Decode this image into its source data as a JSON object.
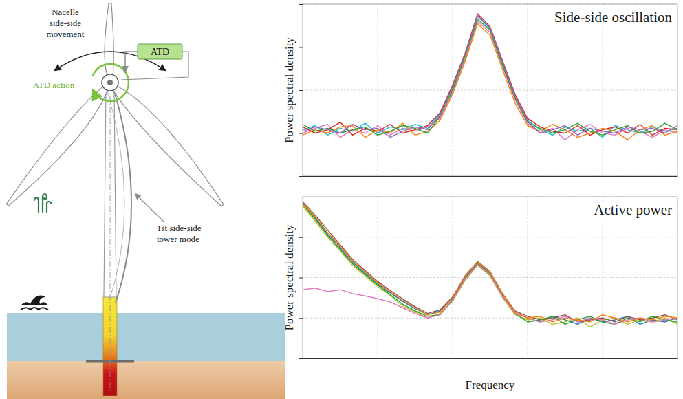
{
  "diagram": {
    "nacelle_label": [
      "Nacelle",
      "side-side",
      "movement"
    ],
    "atd": "ATD",
    "atd_action": "ATD action",
    "tower_mode_label": [
      "1st side-side",
      "tower mode"
    ]
  },
  "chart_data": [
    {
      "type": "line",
      "title": "Side-side oscillation",
      "y_label": "Power spectral density",
      "x": [
        0,
        1,
        2,
        3,
        4,
        5,
        6,
        7,
        8,
        9,
        10,
        11,
        12,
        13,
        14,
        15,
        16,
        17,
        18,
        19,
        20,
        21,
        22,
        23,
        24,
        25,
        26,
        27,
        28,
        29,
        30
      ],
      "xlim": [
        0,
        30
      ],
      "xticks": [
        6,
        12,
        18,
        24
      ],
      "ylim": [
        0.01,
        100
      ],
      "yticks": [
        0.01,
        0.1,
        1,
        10,
        100
      ],
      "log": "y",
      "grid": true,
      "tick_labels": false,
      "series": [
        {
          "color": "#17becf",
          "values": [
            0.12,
            0.15,
            0.09,
            0.13,
            0.11,
            0.17,
            0.1,
            0.14,
            0.12,
            0.16,
            0.13,
            0.28,
            1.1,
            6.5,
            52,
            27,
            4.2,
            0.7,
            0.2,
            0.12,
            0.09,
            0.14,
            0.11,
            0.13,
            0.08,
            0.15,
            0.12,
            0.1,
            0.14,
            0.11,
            0.13
          ]
        },
        {
          "color": "#e377c2",
          "values": [
            0.1,
            0.13,
            0.16,
            0.08,
            0.12,
            0.1,
            0.15,
            0.09,
            0.13,
            0.11,
            0.14,
            0.22,
            0.9,
            5.2,
            40,
            22,
            3.5,
            0.6,
            0.17,
            0.1,
            0.13,
            0.07,
            0.12,
            0.16,
            0.1,
            0.09,
            0.13,
            0.11,
            0.08,
            0.12,
            0.1
          ]
        },
        {
          "color": "#d62728",
          "values": [
            0.14,
            0.1,
            0.12,
            0.18,
            0.09,
            0.13,
            0.11,
            0.16,
            0.1,
            0.12,
            0.15,
            0.3,
            1.3,
            7.2,
            60,
            30,
            4.8,
            0.8,
            0.22,
            0.14,
            0.11,
            0.1,
            0.15,
            0.09,
            0.12,
            0.14,
            0.1,
            0.16,
            0.09,
            0.13,
            0.12
          ]
        },
        {
          "color": "#ff7f0e",
          "values": [
            0.09,
            0.12,
            0.1,
            0.14,
            0.15,
            0.08,
            0.12,
            0.1,
            0.17,
            0.09,
            0.11,
            0.2,
            0.8,
            4.6,
            35,
            19,
            3,
            0.5,
            0.15,
            0.11,
            0.16,
            0.12,
            0.08,
            0.1,
            0.13,
            0.11,
            0.07,
            0.12,
            0.15,
            0.09,
            0.11
          ]
        },
        {
          "color": "#2ca02c",
          "values": [
            0.16,
            0.11,
            0.13,
            0.1,
            0.12,
            0.14,
            0.09,
            0.11,
            0.15,
            0.13,
            0.1,
            0.25,
            1,
            6,
            45,
            25,
            3.8,
            0.65,
            0.18,
            0.13,
            0.1,
            0.12,
            0.17,
            0.11,
            0.09,
            0.12,
            0.15,
            0.1,
            0.11,
            0.17,
            0.12
          ]
        },
        {
          "color": "#9467bd",
          "values": [
            0.11,
            0.14,
            0.12,
            0.1,
            0.16,
            0.12,
            0.13,
            0.08,
            0.11,
            0.14,
            0.12,
            0.26,
            1.2,
            6.8,
            55,
            28,
            4.5,
            0.72,
            0.19,
            0.1,
            0.12,
            0.15,
            0.09,
            0.13,
            0.11,
            0.1,
            0.14,
            0.12,
            0.13,
            0.1,
            0.15
          ]
        }
      ]
    },
    {
      "type": "line",
      "title": "Active power",
      "y_label": "Power spectral density",
      "x_label": "Frequency",
      "x": [
        0,
        1,
        2,
        3,
        4,
        5,
        6,
        7,
        8,
        9,
        10,
        11,
        12,
        13,
        14,
        15,
        16,
        17,
        18,
        19,
        20,
        21,
        22,
        23,
        24,
        25,
        26,
        27,
        28,
        29,
        30
      ],
      "xlim": [
        0,
        30
      ],
      "xticks": [
        6,
        12,
        18,
        24
      ],
      "ylim": [
        0.01,
        100
      ],
      "yticks": [
        0.01,
        0.1,
        1,
        10,
        100
      ],
      "log": "y",
      "grid": true,
      "tick_labels": false,
      "series": [
        {
          "color": "#1f77b4",
          "values": [
            70,
            30,
            12,
            5.5,
            2.4,
            1.3,
            0.7,
            0.42,
            0.26,
            0.17,
            0.12,
            0.15,
            0.3,
            1,
            2.3,
            1.3,
            0.38,
            0.14,
            0.1,
            0.08,
            0.11,
            0.09,
            0.07,
            0.1,
            0.08,
            0.09,
            0.11,
            0.07,
            0.09,
            0.08,
            0.1
          ]
        },
        {
          "color": "#bcbd22",
          "values": [
            60,
            25,
            10,
            4.6,
            2,
            1.1,
            0.6,
            0.36,
            0.2,
            0.14,
            0.1,
            0.13,
            0.26,
            0.85,
            2,
            1.1,
            0.32,
            0.12,
            0.09,
            0.1,
            0.07,
            0.08,
            0.1,
            0.06,
            0.09,
            0.1,
            0.07,
            0.09,
            0.08,
            0.1,
            0.07
          ]
        },
        {
          "color": "#8c564b",
          "values": [
            75,
            35,
            15,
            6.5,
            2.8,
            1.5,
            0.8,
            0.48,
            0.3,
            0.19,
            0.13,
            0.16,
            0.33,
            1.1,
            2.5,
            1.4,
            0.4,
            0.15,
            0.11,
            0.09,
            0.1,
            0.12,
            0.08,
            0.09,
            0.1,
            0.08,
            0.11,
            0.09,
            0.1,
            0.12,
            0.09
          ]
        },
        {
          "color": "#2ca02c",
          "values": [
            65,
            28,
            11,
            5,
            2.2,
            1.2,
            0.65,
            0.38,
            0.22,
            0.15,
            0.11,
            0.12,
            0.28,
            0.95,
            2.2,
            1.2,
            0.35,
            0.13,
            0.08,
            0.09,
            0.11,
            0.07,
            0.09,
            0.11,
            0.08,
            0.07,
            0.1,
            0.08,
            0.11,
            0.09,
            0.08
          ]
        },
        {
          "color": "#e377c2",
          "values": [
            0.5,
            0.55,
            0.45,
            0.5,
            0.4,
            0.35,
            0.3,
            0.25,
            0.18,
            0.13,
            0.1,
            0.12,
            0.27,
            0.9,
            2.1,
            1.15,
            0.34,
            0.13,
            0.1,
            0.08,
            0.09,
            0.11,
            0.08,
            0.1,
            0.09,
            0.07,
            0.09,
            0.1,
            0.08,
            0.09,
            0.1
          ]
        },
        {
          "color": "#ff7f0e",
          "values": [
            68,
            32,
            13,
            6,
            2.6,
            1.4,
            0.75,
            0.45,
            0.28,
            0.18,
            0.12,
            0.14,
            0.31,
            1.05,
            2.4,
            1.35,
            0.39,
            0.14,
            0.1,
            0.11,
            0.08,
            0.1,
            0.09,
            0.08,
            0.12,
            0.1,
            0.08,
            0.1,
            0.09,
            0.11,
            0.1
          ]
        }
      ]
    }
  ]
}
